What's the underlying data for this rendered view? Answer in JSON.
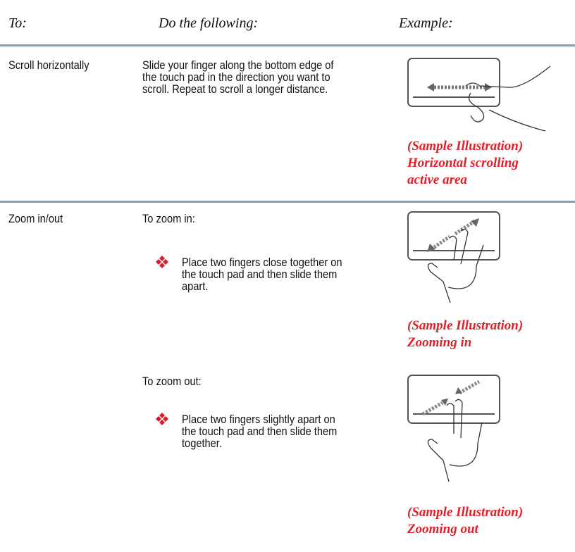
{
  "header": {
    "to": "To:",
    "do": "Do the following:",
    "example": "Example:"
  },
  "rows": [
    {
      "action": "Scroll horizontally",
      "description": [
        "Slide your finger along the bottom edge of",
        "the touch pad in the direction you want to",
        "scroll. Repeat to scroll a longer distance."
      ],
      "caption": [
        "(Sample Illustration)",
        "Horizontal scrolling",
        "active area"
      ]
    },
    {
      "action": "Zoom in/out",
      "steps": [
        {
          "heading": "To zoom in:",
          "bullet": [
            "Place two fingers close together on",
            "the touch pad and then slide them",
            "apart."
          ],
          "caption": [
            "(Sample Illustration)",
            "Zooming in"
          ]
        },
        {
          "heading": "To zoom out:",
          "bullet": [
            "Place two fingers slightly apart on",
            "the touch pad and then slide them",
            "together."
          ],
          "caption": [
            "(Sample Illustration)",
            "Zooming out"
          ]
        }
      ]
    }
  ]
}
